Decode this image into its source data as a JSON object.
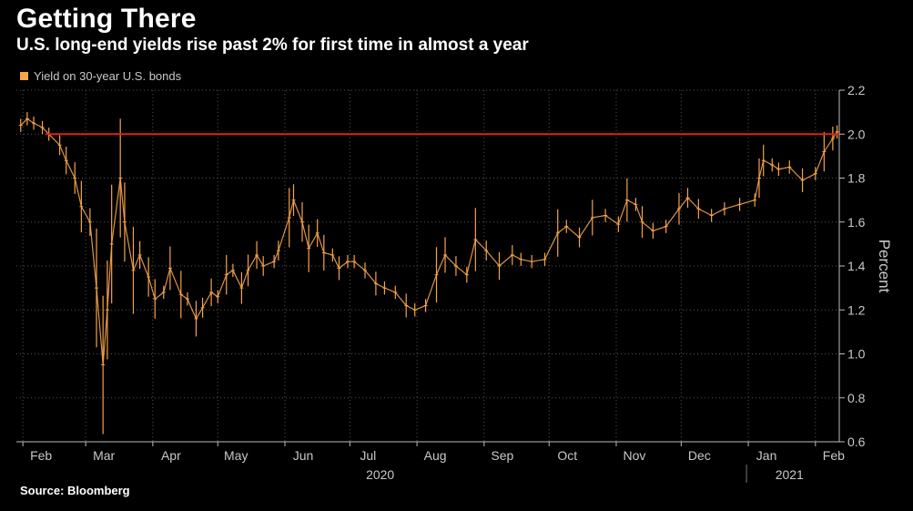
{
  "title": "Getting There",
  "subtitle": "U.S. long-end yields rise past 2% for first time in almost a year",
  "source": "Source: Bloomberg",
  "colors": {
    "series": "#f5a44a",
    "reference": "#e0201e",
    "grid": "#555555",
    "background": "#000000"
  },
  "chart_data": {
    "type": "line",
    "style": "ohlc-bars",
    "series": [
      {
        "name": "Yield on 30-year U.S. bonds",
        "x": [
          "2020-01-31",
          "2020-02-03",
          "2020-02-06",
          "2020-02-10",
          "2020-02-13",
          "2020-02-18",
          "2020-02-21",
          "2020-02-25",
          "2020-02-28",
          "2020-03-03",
          "2020-03-06",
          "2020-03-09",
          "2020-03-11",
          "2020-03-13",
          "2020-03-17",
          "2020-03-19",
          "2020-03-23",
          "2020-03-26",
          "2020-03-30",
          "2020-04-02",
          "2020-04-06",
          "2020-04-09",
          "2020-04-14",
          "2020-04-17",
          "2020-04-21",
          "2020-04-24",
          "2020-04-28",
          "2020-05-01",
          "2020-05-05",
          "2020-05-08",
          "2020-05-12",
          "2020-05-15",
          "2020-05-19",
          "2020-05-22",
          "2020-05-27",
          "2020-05-29",
          "2020-06-03",
          "2020-06-05",
          "2020-06-09",
          "2020-06-12",
          "2020-06-16",
          "2020-06-19",
          "2020-06-23",
          "2020-06-26",
          "2020-06-30",
          "2020-07-03",
          "2020-07-08",
          "2020-07-13",
          "2020-07-17",
          "2020-07-22",
          "2020-07-27",
          "2020-07-31",
          "2020-08-05",
          "2020-08-10",
          "2020-08-14",
          "2020-08-19",
          "2020-08-24",
          "2020-08-28",
          "2020-09-02",
          "2020-09-08",
          "2020-09-14",
          "2020-09-18",
          "2020-09-23",
          "2020-09-29",
          "2020-10-05",
          "2020-10-09",
          "2020-10-15",
          "2020-10-21",
          "2020-10-27",
          "2020-11-02",
          "2020-11-06",
          "2020-11-10",
          "2020-11-13",
          "2020-11-18",
          "2020-11-24",
          "2020-11-30",
          "2020-12-04",
          "2020-12-09",
          "2020-12-15",
          "2020-12-21",
          "2020-12-28",
          "2021-01-04",
          "2021-01-06",
          "2021-01-08",
          "2021-01-12",
          "2021-01-15",
          "2021-01-20",
          "2021-01-26",
          "2021-02-01",
          "2021-02-05",
          "2021-02-09",
          "2021-02-11"
        ],
        "values": [
          2.04,
          2.07,
          2.05,
          2.03,
          2.0,
          1.95,
          1.88,
          1.8,
          1.67,
          1.6,
          1.3,
          0.95,
          1.2,
          1.5,
          1.8,
          1.6,
          1.38,
          1.45,
          1.35,
          1.25,
          1.28,
          1.39,
          1.27,
          1.25,
          1.16,
          1.21,
          1.28,
          1.26,
          1.36,
          1.38,
          1.3,
          1.38,
          1.45,
          1.4,
          1.42,
          1.47,
          1.62,
          1.7,
          1.6,
          1.48,
          1.55,
          1.46,
          1.45,
          1.39,
          1.42,
          1.42,
          1.38,
          1.32,
          1.3,
          1.28,
          1.22,
          1.2,
          1.22,
          1.36,
          1.45,
          1.4,
          1.36,
          1.52,
          1.47,
          1.4,
          1.45,
          1.43,
          1.42,
          1.43,
          1.55,
          1.58,
          1.53,
          1.62,
          1.63,
          1.59,
          1.7,
          1.68,
          1.6,
          1.56,
          1.58,
          1.66,
          1.71,
          1.66,
          1.63,
          1.66,
          1.68,
          1.7,
          1.8,
          1.88,
          1.86,
          1.84,
          1.85,
          1.79,
          1.82,
          1.92,
          1.98,
          2.01
        ]
      }
    ],
    "reference_line": 2.0,
    "ylabel": "Percent",
    "ylim": [
      0.6,
      2.2
    ],
    "yticks": [
      "2.2",
      "2.0",
      "1.8",
      "1.6",
      "1.4",
      "1.2",
      "1.0",
      "0.8",
      "0.6"
    ],
    "xlim": [
      "2020-01-29",
      "2021-02-12"
    ],
    "xticks": [
      {
        "label": "Feb",
        "date": "2020-02-01"
      },
      {
        "label": "Mar",
        "date": "2020-03-01"
      },
      {
        "label": "Apr",
        "date": "2020-04-01"
      },
      {
        "label": "May",
        "date": "2020-05-01"
      },
      {
        "label": "Jun",
        "date": "2020-06-01"
      },
      {
        "label": "Jul",
        "date": "2020-07-01"
      },
      {
        "label": "Aug",
        "date": "2020-08-01"
      },
      {
        "label": "Sep",
        "date": "2020-09-01"
      },
      {
        "label": "Oct",
        "date": "2020-10-01"
      },
      {
        "label": "Nov",
        "date": "2020-11-01"
      },
      {
        "label": "Dec",
        "date": "2020-12-01"
      },
      {
        "label": "Jan",
        "date": "2021-01-01"
      },
      {
        "label": "Feb",
        "date": "2021-02-01"
      }
    ],
    "years": [
      {
        "label": "2020",
        "date": "2020-07-15"
      },
      {
        "label": "2021",
        "date": "2021-01-20"
      }
    ],
    "year_divider": "2021-01-01",
    "grid": true,
    "legend_position": "top-left"
  }
}
